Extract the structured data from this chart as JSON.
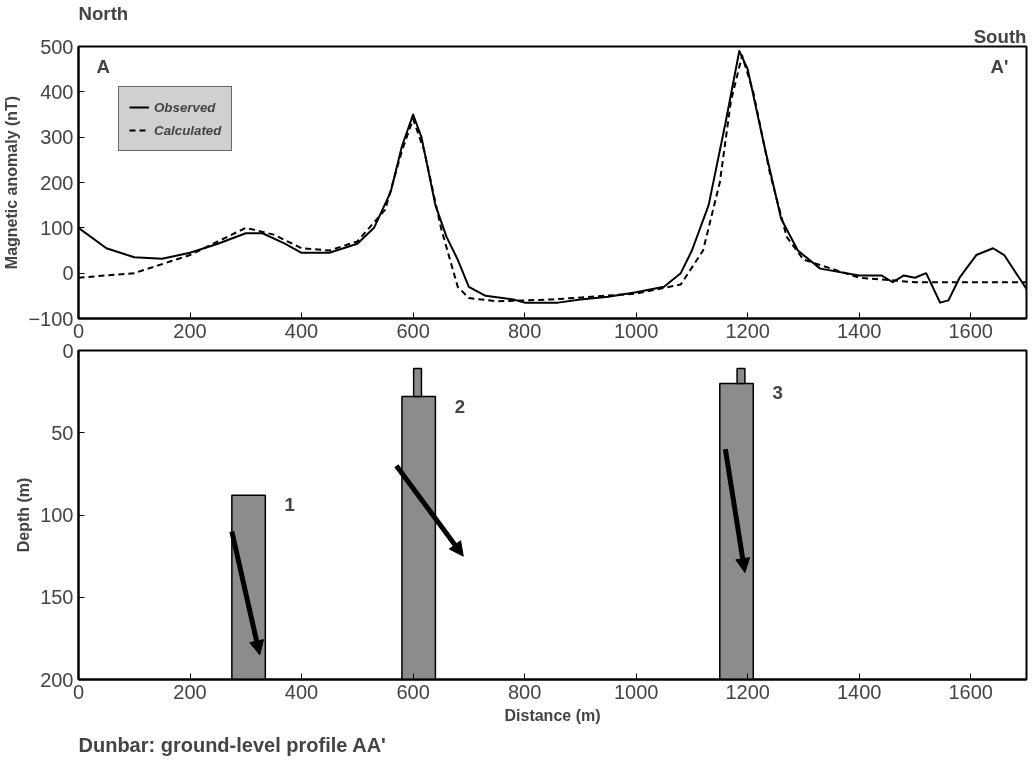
{
  "chart_data": [
    {
      "type": "line",
      "xlabel": null,
      "ylabel": "Magnetic anomaly (nT)",
      "xlim": [
        0,
        1700
      ],
      "ylim": [
        -100,
        500
      ],
      "xticks": [
        0,
        200,
        400,
        600,
        800,
        1000,
        1200,
        1400,
        1600
      ],
      "yticks": [
        -100,
        0,
        100,
        200,
        300,
        400,
        500
      ],
      "legend": "top left",
      "annotations": [
        "North",
        "South",
        "A",
        "A'"
      ],
      "series": [
        {
          "name": "Observed",
          "color": "#000000",
          "line_style": "solid",
          "x": [
            0,
            50,
            100,
            150,
            200,
            250,
            300,
            330,
            370,
            400,
            450,
            500,
            530,
            560,
            580,
            600,
            615,
            640,
            660,
            680,
            700,
            730,
            780,
            800,
            860,
            900,
            950,
            1000,
            1050,
            1080,
            1100,
            1130,
            1160,
            1185,
            1200,
            1230,
            1260,
            1290,
            1330,
            1400,
            1440,
            1460,
            1480,
            1500,
            1520,
            1545,
            1560,
            1580,
            1610,
            1640,
            1660,
            1700
          ],
          "values": [
            100,
            55,
            35,
            32,
            45,
            65,
            88,
            88,
            65,
            45,
            45,
            65,
            100,
            180,
            280,
            350,
            300,
            150,
            80,
            30,
            -30,
            -50,
            -58,
            -65,
            -65,
            -58,
            -52,
            -42,
            -30,
            0,
            50,
            150,
            330,
            490,
            450,
            280,
            120,
            50,
            10,
            -5,
            -5,
            -20,
            -5,
            -10,
            0,
            -65,
            -60,
            -10,
            40,
            55,
            40,
            -35
          ]
        },
        {
          "name": "Calculated",
          "color": "#000000",
          "line_style": "dashed",
          "x": [
            0,
            100,
            200,
            300,
            350,
            400,
            450,
            500,
            550,
            580,
            600,
            620,
            650,
            680,
            700,
            750,
            850,
            1000,
            1080,
            1120,
            1150,
            1170,
            1190,
            1210,
            1240,
            1270,
            1300,
            1400,
            1500,
            1700
          ],
          "values": [
            -10,
            0,
            40,
            100,
            85,
            55,
            50,
            70,
            140,
            270,
            340,
            270,
            100,
            -30,
            -55,
            -62,
            -58,
            -45,
            -25,
            50,
            200,
            380,
            480,
            400,
            220,
            80,
            30,
            -10,
            -20,
            -20
          ]
        }
      ]
    },
    {
      "type": "bar",
      "xlabel": "Distance (m)",
      "ylabel": "Depth (m)",
      "xlim": [
        0,
        1700
      ],
      "ylim": [
        200,
        0
      ],
      "xticks": [
        0,
        200,
        400,
        600,
        800,
        1000,
        1200,
        1400,
        1600
      ],
      "yticks": [
        0,
        50,
        100,
        150,
        200
      ],
      "annotations": [
        "1",
        "2",
        "3",
        "Dunbar: ground-level profile AA'"
      ],
      "series": [
        {
          "color": "#8c8c8c",
          "x": [
            305,
            610,
            1180
          ],
          "base": [
            88,
            28,
            20
          ],
          "values": [
            112,
            172,
            180
          ]
        },
        {
          "color": "#8c8c8c",
          "x": [
            608,
            1188
          ],
          "base": [
            11,
            11
          ],
          "values": [
            17,
            9
          ]
        }
      ]
    }
  ]
}
